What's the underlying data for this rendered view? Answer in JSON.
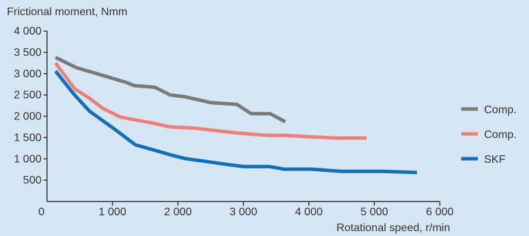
{
  "chart_data": {
    "type": "line",
    "title": "",
    "ylabel": "Frictional moment, Nmm",
    "xlabel": "Rotational speed, r/min",
    "xlim": [
      0,
      6000
    ],
    "ylim": [
      0,
      4000
    ],
    "x_ticks": [
      {
        "value": 0,
        "label": "0"
      },
      {
        "value": 1000,
        "label": "1 000"
      },
      {
        "value": 2000,
        "label": "2 000"
      },
      {
        "value": 3000,
        "label": "3 000"
      },
      {
        "value": 4000,
        "label": "4 000"
      },
      {
        "value": 5000,
        "label": "5 000"
      },
      {
        "value": 6000,
        "label": "6 000"
      }
    ],
    "y_ticks": [
      {
        "value": 500,
        "label": "500"
      },
      {
        "value": 1000,
        "label": "1 000"
      },
      {
        "value": 1500,
        "label": "1 500"
      },
      {
        "value": 2000,
        "label": "2 000"
      },
      {
        "value": 2500,
        "label": "2 500"
      },
      {
        "value": 3000,
        "label": "3 000"
      },
      {
        "value": 3500,
        "label": "3 500"
      },
      {
        "value": 4000,
        "label": "4 000"
      }
    ],
    "grid": false,
    "legend_position": "right",
    "series": [
      {
        "name": "Comp.",
        "color": "#7a7a7a",
        "points": [
          [
            130,
            3380
          ],
          [
            450,
            3140
          ],
          [
            870,
            2950
          ],
          [
            1200,
            2800
          ],
          [
            1330,
            2720
          ],
          [
            1650,
            2680
          ],
          [
            1880,
            2500
          ],
          [
            2100,
            2460
          ],
          [
            2500,
            2320
          ],
          [
            2900,
            2280
          ],
          [
            3120,
            2060
          ],
          [
            3410,
            2060
          ],
          [
            3640,
            1870
          ]
        ]
      },
      {
        "name": "Comp.",
        "color": "#e8827a",
        "points": [
          [
            130,
            3250
          ],
          [
            420,
            2650
          ],
          [
            650,
            2420
          ],
          [
            860,
            2180
          ],
          [
            1120,
            1980
          ],
          [
            1330,
            1920
          ],
          [
            1650,
            1830
          ],
          [
            1880,
            1750
          ],
          [
            2270,
            1720
          ],
          [
            2600,
            1660
          ],
          [
            2900,
            1610
          ],
          [
            3120,
            1580
          ],
          [
            3400,
            1550
          ],
          [
            3650,
            1550
          ],
          [
            4000,
            1520
          ],
          [
            4400,
            1490
          ],
          [
            4880,
            1490
          ]
        ]
      },
      {
        "name": "SKF",
        "color": "#1170b8",
        "points": [
          [
            130,
            3060
          ],
          [
            420,
            2500
          ],
          [
            650,
            2120
          ],
          [
            1030,
            1700
          ],
          [
            1350,
            1330
          ],
          [
            1650,
            1200
          ],
          [
            1900,
            1090
          ],
          [
            2100,
            1010
          ],
          [
            2520,
            920
          ],
          [
            2750,
            870
          ],
          [
            3000,
            820
          ],
          [
            3400,
            820
          ],
          [
            3620,
            760
          ],
          [
            4040,
            760
          ],
          [
            4480,
            710
          ],
          [
            5120,
            710
          ],
          [
            5650,
            680
          ]
        ]
      }
    ]
  }
}
